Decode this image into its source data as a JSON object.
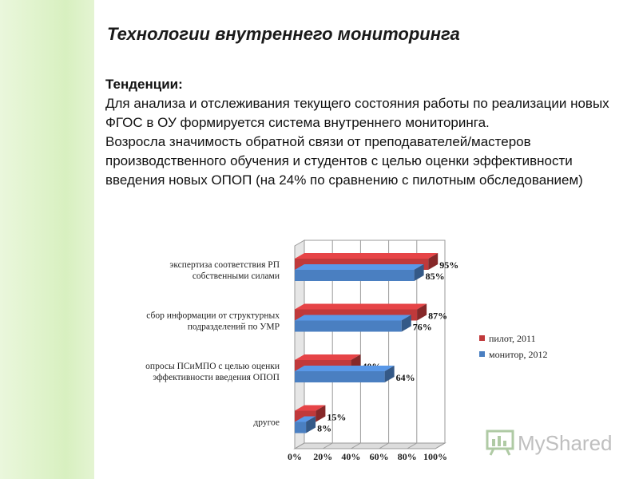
{
  "slide": {
    "title": "Технологии внутреннего мониторинга",
    "trend_heading": "Тенденции:",
    "paragraph_1": "Для анализа и отслеживания текущего состояния работы по реализации новых ФГОС в ОУ формируется система внутреннего мониторинга.",
    "paragraph_2": "Возросла значимость обратной связи от преподавателей/мастеров производственного обучения и студентов с целью оценки эффективности введения новых ОПОП (на 24% по сравнению с пилотным обследованием)"
  },
  "colors": {
    "series_pilot": "#c0393b",
    "series_monitor": "#4a7fc1",
    "left_band": "#d8f0c0"
  },
  "chart_data": {
    "type": "bar",
    "orientation": "horizontal",
    "style": "3d",
    "categories": [
      [
        "экспертиза соответствия РП",
        "собственными силами"
      ],
      [
        "сбор информации от структурных",
        "подразделений по УМР"
      ],
      [
        "опросы ПСиМПО с целью оценки",
        "эффективности введения ОПОП"
      ],
      [
        "другое"
      ]
    ],
    "series": [
      {
        "name": "пилот, 2011",
        "color": "#c0393b",
        "values": [
          95,
          87,
          40,
          15
        ]
      },
      {
        "name": "монитор, 2012",
        "color": "#4a7fc1",
        "values": [
          85,
          76,
          64,
          8
        ]
      }
    ],
    "value_labels": [
      [
        "95%",
        "85%"
      ],
      [
        "87%",
        "76%"
      ],
      [
        "40%",
        "64%"
      ],
      [
        "15%",
        "8%"
      ]
    ],
    "xticks": [
      "0%",
      "20%",
      "40%",
      "60%",
      "80%",
      "100%"
    ],
    "xlim": [
      0,
      100
    ],
    "grid": true,
    "legend": "right"
  },
  "watermark": {
    "text": "MyShared",
    "icon": "myshared-logo-icon"
  }
}
